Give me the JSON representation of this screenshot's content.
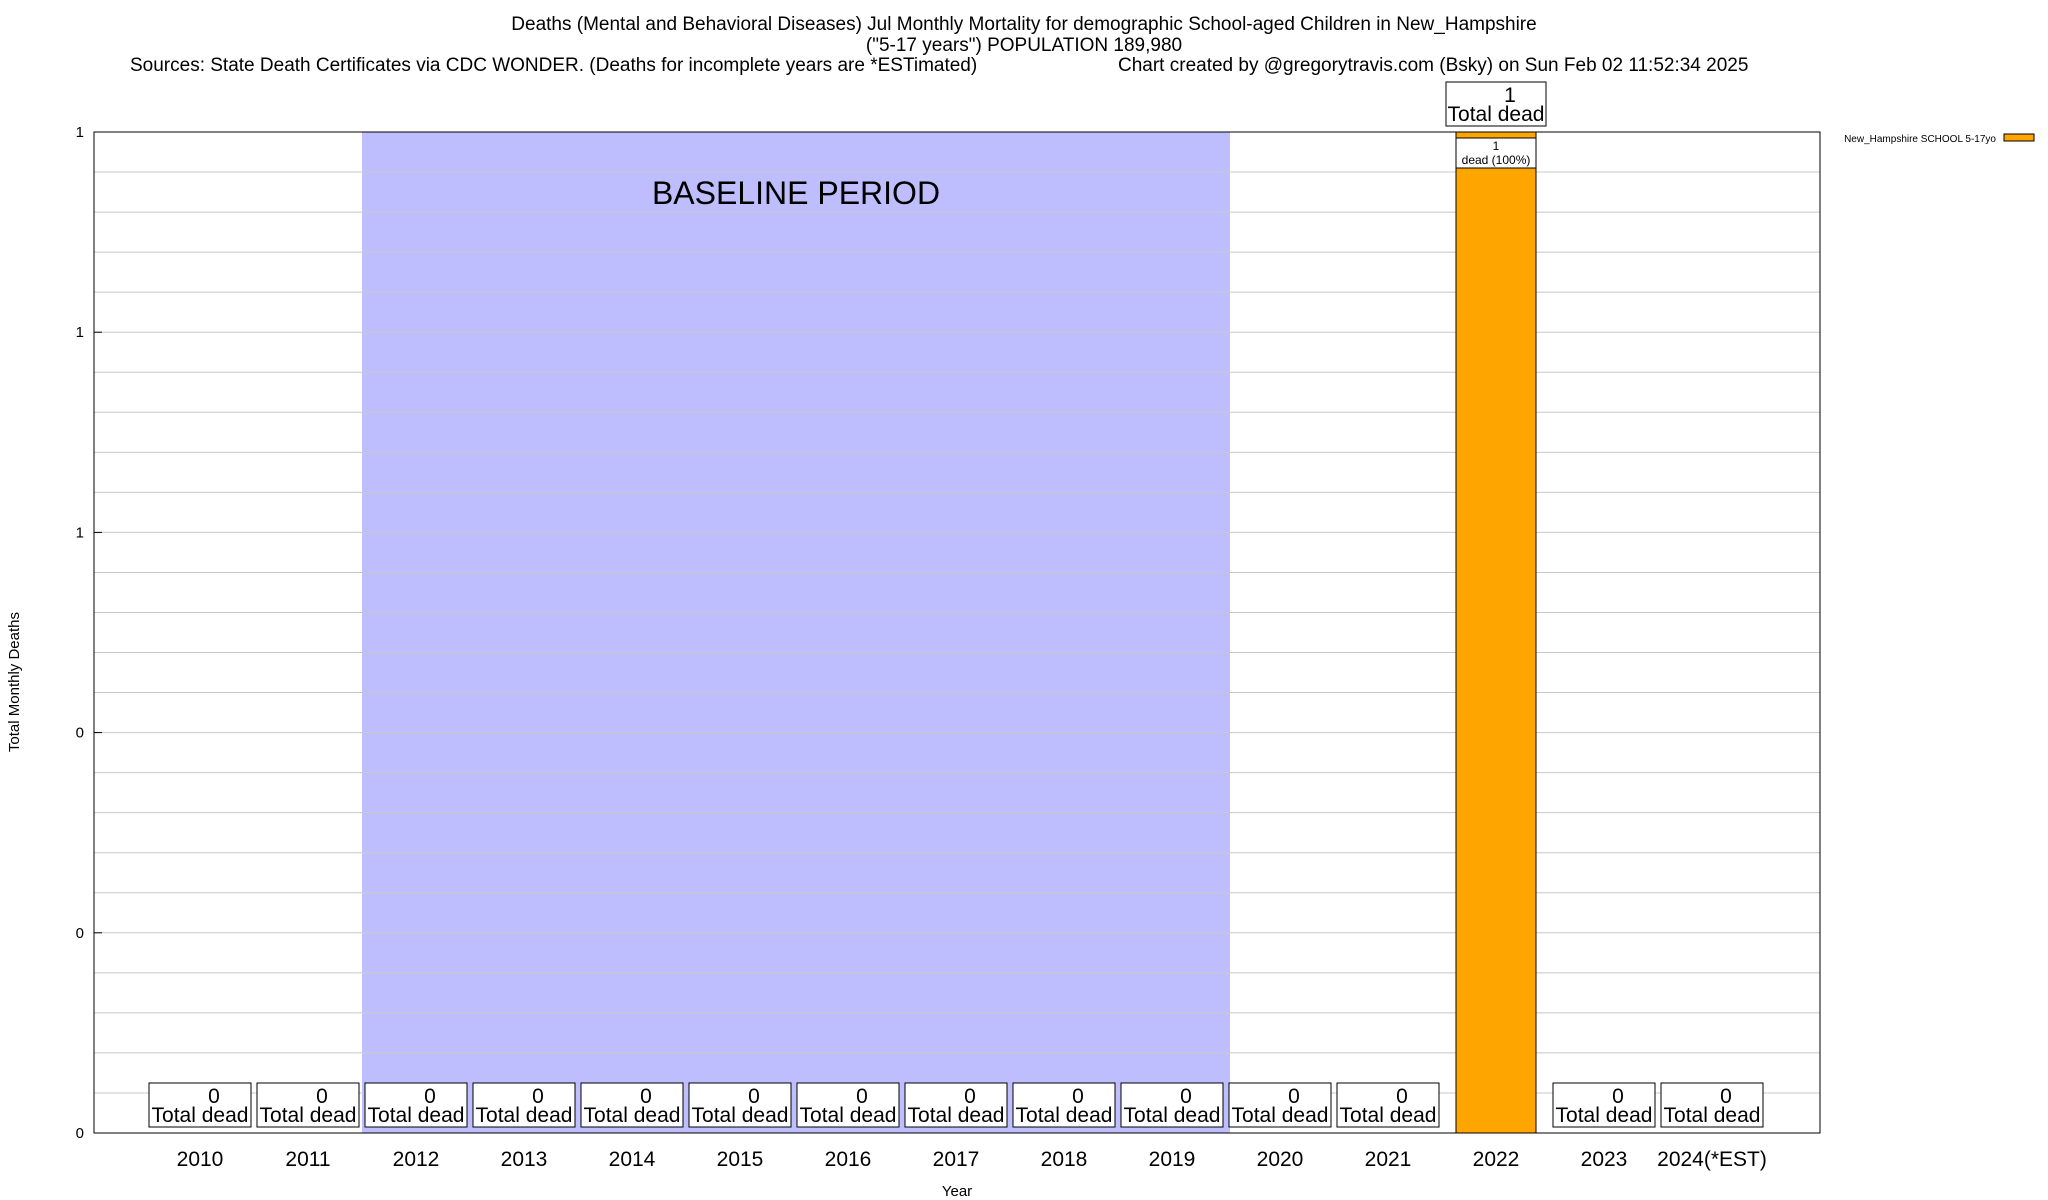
{
  "header": {
    "title_line1": "Deaths (Mental and Behavioral Diseases) Jul Monthly Mortality for demographic School-aged Children in New_Hampshire",
    "title_line2": "(\"5-17 years\") POPULATION 189,980",
    "sources": "Sources: State Death Certificates via CDC WONDER. (Deaths for incomplete years are *ESTimated)",
    "credit": "Chart created by @gregorytravis.com (Bsky) on Sun Feb 02 11:52:34 2025"
  },
  "chart_data": {
    "type": "bar",
    "title": "Deaths (Mental and Behavioral Diseases) Jul Monthly Mortality for demographic School-aged Children in New_Hampshire",
    "xlabel": "Year",
    "ylabel": "Total Monthly Deaths",
    "categories": [
      "2010",
      "2011",
      "2012",
      "2013",
      "2014",
      "2015",
      "2016",
      "2017",
      "2018",
      "2019",
      "2020",
      "2021",
      "2022",
      "2023",
      "2024(*EST)"
    ],
    "series": [
      {
        "name": "New_Hampshire SCHOOL 5-17yo",
        "values": [
          0,
          0,
          0,
          0,
          0,
          0,
          0,
          0,
          0,
          0,
          0,
          0,
          1,
          0,
          0
        ],
        "color": "#FFA500"
      }
    ],
    "ylim": [
      0,
      1
    ],
    "ytick_labels": [
      "0",
      "0",
      "0",
      "1",
      "1",
      "1"
    ],
    "total_label_prefix": "",
    "total_label_suffix": "Total dead",
    "bar_label": "dead (100%)",
    "baseline": {
      "label": "BASELINE PERIOD",
      "start": "2012",
      "end": "2019",
      "color": "#BEBEFF"
    },
    "legend": {
      "position": "top-right",
      "entry": "New_Hampshire SCHOOL 5-17yo"
    },
    "grid": true
  }
}
